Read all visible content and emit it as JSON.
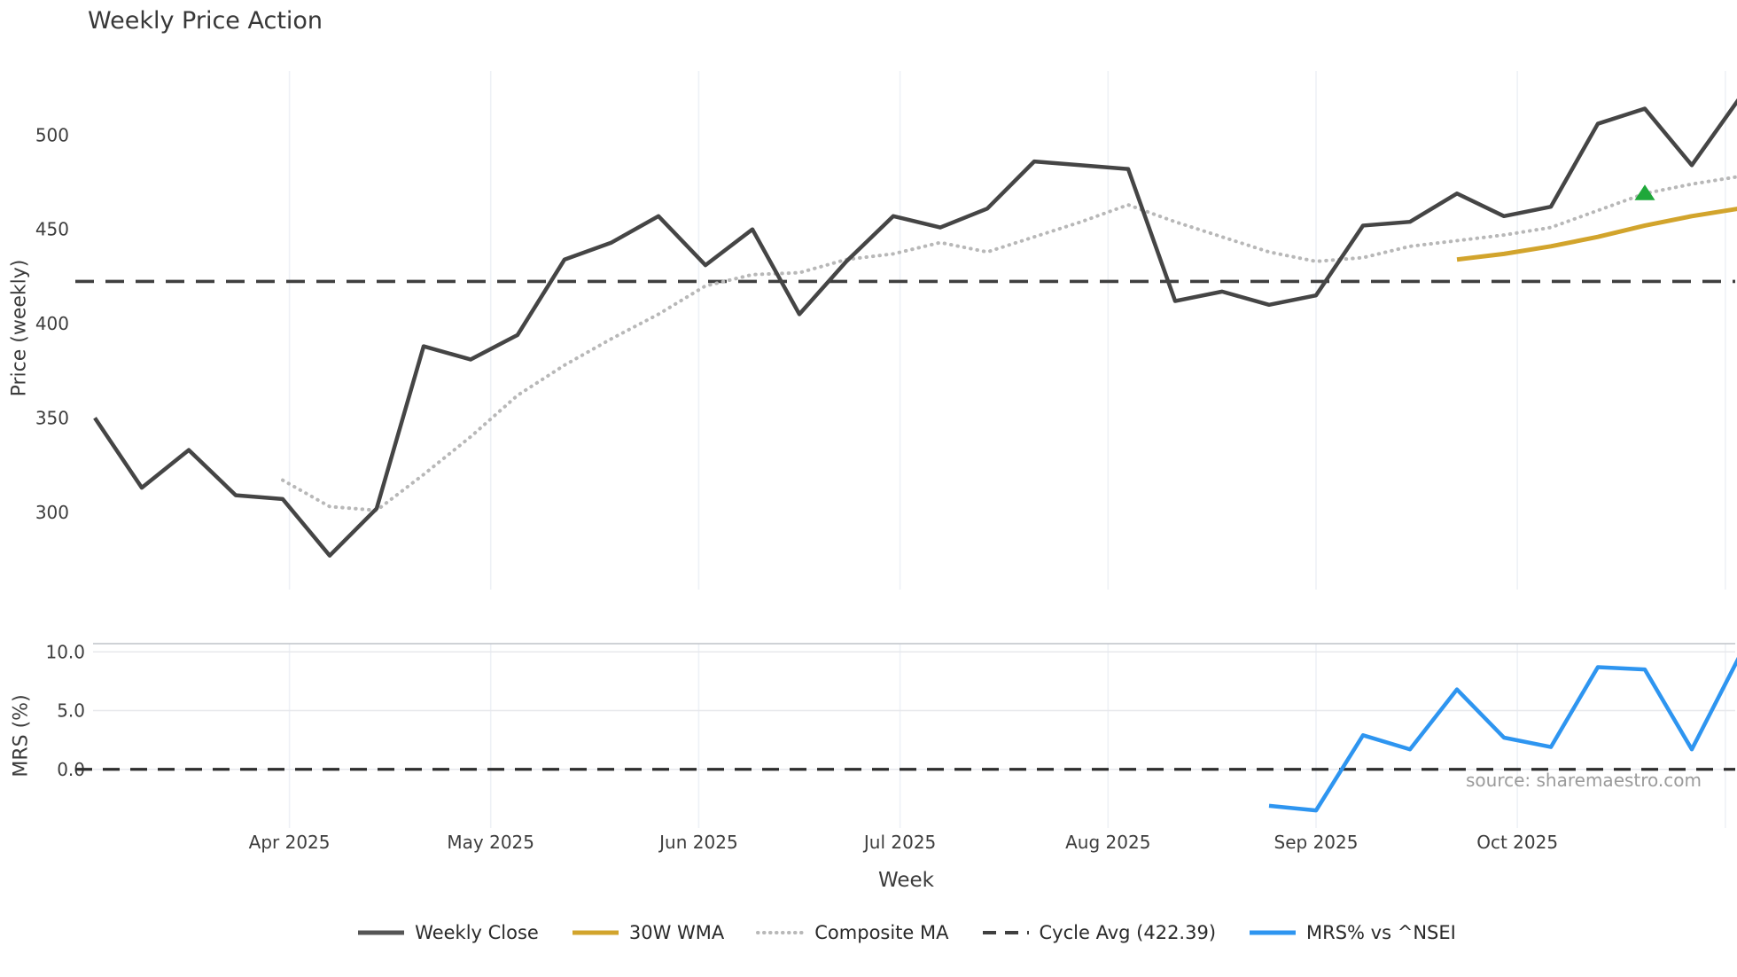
{
  "chart_data": {
    "type": "line",
    "title": "Weekly Price Action",
    "source": "source: sharemaestro.com",
    "x": {
      "label": "Week",
      "weeks": [
        "2025-03-03",
        "2025-03-10",
        "2025-03-17",
        "2025-03-24",
        "2025-03-31",
        "2025-04-07",
        "2025-04-14",
        "2025-04-21",
        "2025-04-28",
        "2025-05-05",
        "2025-05-12",
        "2025-05-19",
        "2025-05-26",
        "2025-06-02",
        "2025-06-09",
        "2025-06-16",
        "2025-06-23",
        "2025-06-30",
        "2025-07-07",
        "2025-07-14",
        "2025-07-21",
        "2025-07-28",
        "2025-08-04",
        "2025-08-11",
        "2025-08-18",
        "2025-08-25",
        "2025-09-01",
        "2025-09-08",
        "2025-09-15",
        "2025-09-22",
        "2025-09-29",
        "2025-10-06",
        "2025-10-13",
        "2025-10-20",
        "2025-10-27",
        "2025-11-03"
      ],
      "months": [
        {
          "label": "Apr 2025",
          "date": "2025-04-01"
        },
        {
          "label": "May 2025",
          "date": "2025-05-01"
        },
        {
          "label": "Jun 2025",
          "date": "2025-06-01"
        },
        {
          "label": "Jul 2025",
          "date": "2025-07-01"
        },
        {
          "label": "Aug 2025",
          "date": "2025-08-01"
        },
        {
          "label": "Sep 2025",
          "date": "2025-09-01"
        },
        {
          "label": "Oct 2025",
          "date": "2025-10-01"
        },
        {
          "label": "",
          "date": "2025-11-01"
        }
      ]
    },
    "panels": [
      {
        "name": "price",
        "ylabel": "Price (weekly)",
        "ylim": [
          259,
          534
        ],
        "yticks": [
          {
            "value": 300,
            "label": "300"
          },
          {
            "value": 350,
            "label": "350"
          },
          {
            "value": 400,
            "label": "400"
          },
          {
            "value": 450,
            "label": "450"
          },
          {
            "value": 500,
            "label": "500"
          }
        ],
        "hline": {
          "name": "Cycle Avg (422.39)",
          "value": 422.39,
          "style": "dashed",
          "color": "#3f3f3f"
        },
        "series": [
          {
            "name": "Composite MA",
            "color": "#b8b8b8",
            "style": "dotted",
            "width": 4,
            "values": [
              null,
              null,
              null,
              null,
              317,
              303,
              301,
              320,
              340,
              362,
              378,
              392,
              405,
              420,
              426,
              427,
              434,
              437,
              443,
              438,
              446,
              454,
              463,
              454,
              446,
              438,
              433,
              435,
              441,
              444,
              447,
              451,
              460,
              469,
              474,
              478
            ]
          },
          {
            "name": "30W WMA",
            "color": "#d2a42c",
            "style": "solid",
            "width": 5,
            "values": [
              null,
              null,
              null,
              null,
              null,
              null,
              null,
              null,
              null,
              null,
              null,
              null,
              null,
              null,
              null,
              null,
              null,
              null,
              null,
              null,
              null,
              null,
              null,
              null,
              null,
              null,
              null,
              null,
              null,
              434,
              437,
              441,
              446,
              452,
              457,
              461
            ]
          },
          {
            "name": "Weekly Close",
            "color": "#454545",
            "style": "solid",
            "width": 4.5,
            "values": [
              350,
              313,
              333,
              309,
              307,
              277,
              302,
              388,
              381,
              394,
              434,
              443,
              457,
              431,
              450,
              405,
              433,
              457,
              451,
              461,
              486,
              484,
              482,
              412,
              417,
              410,
              415,
              452,
              454,
              469,
              457,
              462,
              506,
              514,
              484,
              519
            ]
          }
        ],
        "marker": {
          "shape": "triangle-up",
          "color": "#1fa83a",
          "week": "2025-10-20",
          "value": 469
        }
      },
      {
        "name": "mrs",
        "ylabel": "MRS (%)",
        "ylim": [
          -5,
          10.7
        ],
        "yticks": [
          {
            "value": 0,
            "label": "0.0"
          },
          {
            "value": 5,
            "label": "5.0"
          },
          {
            "value": 10,
            "label": "10.0"
          }
        ],
        "hline": {
          "name": "zero-line",
          "value": 0,
          "style": "dashed",
          "color": "#2d2d2d"
        },
        "series": [
          {
            "name": "MRS% vs ^NSEI",
            "color": "#2e95f0",
            "style": "solid",
            "width": 4.5,
            "values": [
              null,
              null,
              null,
              null,
              null,
              null,
              null,
              null,
              null,
              null,
              null,
              null,
              null,
              null,
              null,
              null,
              null,
              null,
              null,
              null,
              null,
              null,
              null,
              null,
              null,
              -3.1,
              -3.5,
              2.9,
              1.7,
              6.8,
              2.7,
              1.9,
              8.7,
              8.5,
              1.7,
              9.5
            ]
          }
        ]
      }
    ],
    "legend": [
      {
        "label": "Weekly Close",
        "color": "#555555",
        "style": "solid"
      },
      {
        "label": "30W WMA",
        "color": "#d2a42c",
        "style": "solid"
      },
      {
        "label": "Composite MA",
        "color": "#b8b8b8",
        "style": "dotted"
      },
      {
        "label": "Cycle Avg (422.39)",
        "color": "#3f3f3f",
        "style": "dashed"
      },
      {
        "label": "MRS% vs ^NSEI",
        "color": "#2e95f0",
        "style": "solid"
      }
    ],
    "grid": {
      "vertical_month_gridlines": true,
      "mrs_horizontal_gridlines": true
    }
  }
}
